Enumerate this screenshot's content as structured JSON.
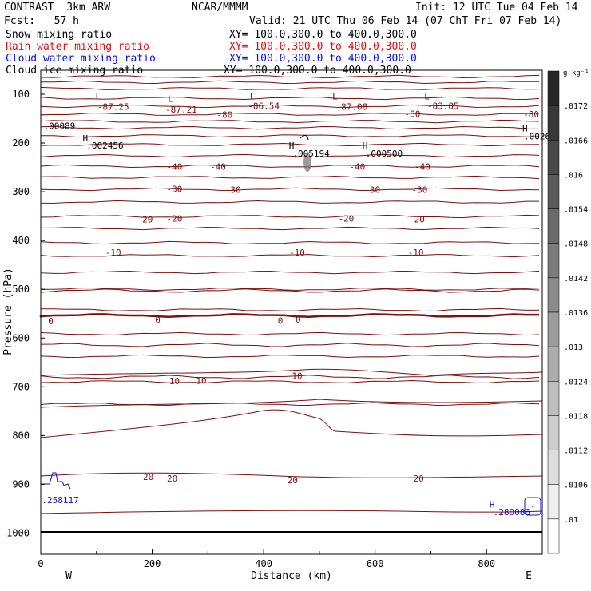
{
  "header": {
    "model": "CONTRAST  3km ARW",
    "org": "NCAR/MMMM",
    "init": "Init: 12 UTC Tue 04 Feb 14",
    "fcst": "Fcst:   57 h",
    "valid": "Valid: 21 UTC Thu 06 Feb 14 (07 ChT Fri 07 Feb 14)",
    "fields": [
      {
        "name": "Snow mixing ratio",
        "xy": "XY= 100.0,300.0 to 400.0,300.0",
        "color": "#000000"
      },
      {
        "name": "Rain water mixing ratio",
        "xy": "XY= 100.0,300.0 to 400.0,300.0",
        "color": "#dd1111"
      },
      {
        "name": "Cloud water mixing ratio",
        "xy": "XY= 100.0,300.0 to 400.0,300.0",
        "color": "#1111cc"
      },
      {
        "name": "Cloud ice mixing ratio",
        "xy": "XY= 100.0,300.0 to 400.0,300.0",
        "color": "#000000"
      }
    ]
  },
  "colorbar": {
    "unit": "g kg⁻¹",
    "labels": [
      ".0172",
      ".0166",
      ".016",
      ".0154",
      ".0148",
      ".0142",
      ".0136",
      ".013",
      ".0124",
      ".0118",
      ".0112",
      ".0106",
      ".01"
    ]
  },
  "chart_data": {
    "type": "contour cross-section",
    "xlabel": "Distance (km)",
    "ylabel": "Pressure (hPa)",
    "xlim": [
      0,
      900
    ],
    "ylim": [
      1000,
      100
    ],
    "x_ticks": [
      "0",
      "200",
      "400",
      "600",
      "800"
    ],
    "y_ticks": [
      "100",
      "200",
      "300",
      "400",
      "500",
      "600",
      "700",
      "800",
      "900",
      "1000"
    ],
    "compass": {
      "left": "W",
      "right": "E"
    },
    "contour_color": "#7a1010",
    "zero_contour": 0,
    "contour_labels": [
      {
        "text": "-87.25",
        "x": 130,
        "p": 125,
        "color": "#7a1010"
      },
      {
        "text": "-87.21",
        "x": 252,
        "p": 131,
        "color": "#7a1010"
      },
      {
        "text": "-86.54",
        "x": 400,
        "p": 124,
        "color": "#7a1010"
      },
      {
        "text": "-87.08",
        "x": 558,
        "p": 125,
        "color": "#7a1010"
      },
      {
        "text": "-83.85",
        "x": 722,
        "p": 124,
        "color": "#7a1010"
      },
      {
        "text": "-80",
        "x": 330,
        "p": 142,
        "color": "#7a1010"
      },
      {
        "text": "-80",
        "x": 667,
        "p": 140,
        "color": "#7a1010"
      },
      {
        "text": "-80",
        "x": 880,
        "p": 141,
        "color": "#7a1010"
      },
      {
        "text": "-40",
        "x": 240,
        "p": 248,
        "color": "#7a1010"
      },
      {
        "text": "-40",
        "x": 318,
        "p": 248,
        "color": "#7a1010"
      },
      {
        "text": "-40",
        "x": 568,
        "p": 248,
        "color": "#7a1010"
      },
      {
        "text": "-40",
        "x": 685,
        "p": 248,
        "color": "#7a1010"
      },
      {
        "text": "-30",
        "x": 240,
        "p": 294,
        "color": "#7a1010"
      },
      {
        "text": "-30",
        "x": 345,
        "p": 296,
        "color": "#7a1010"
      },
      {
        "text": "-30",
        "x": 595,
        "p": 296,
        "color": "#7a1010"
      },
      {
        "text": "-30",
        "x": 680,
        "p": 296,
        "color": "#7a1010"
      },
      {
        "text": "-20",
        "x": 187,
        "p": 356,
        "color": "#7a1010"
      },
      {
        "text": "-20",
        "x": 240,
        "p": 355,
        "color": "#7a1010"
      },
      {
        "text": "-20",
        "x": 548,
        "p": 355,
        "color": "#7a1010"
      },
      {
        "text": "-20",
        "x": 675,
        "p": 356,
        "color": "#7a1010"
      },
      {
        "text": "-10",
        "x": 130,
        "p": 424,
        "color": "#7a1010"
      },
      {
        "text": "-10",
        "x": 460,
        "p": 424,
        "color": "#7a1010"
      },
      {
        "text": "-10",
        "x": 673,
        "p": 424,
        "color": "#7a1010"
      },
      {
        "text": "0",
        "x": 18,
        "p": 565,
        "color": "#7a1010"
      },
      {
        "text": "0",
        "x": 210,
        "p": 563,
        "color": "#7a1010"
      },
      {
        "text": "0",
        "x": 430,
        "p": 564,
        "color": "#7a1010"
      },
      {
        "text": "0",
        "x": 462,
        "p": 562,
        "color": "#7a1010"
      },
      {
        "text": "10",
        "x": 240,
        "p": 688,
        "color": "#7a1010"
      },
      {
        "text": "10",
        "x": 288,
        "p": 687,
        "color": "#7a1010"
      },
      {
        "text": "10",
        "x": 460,
        "p": 677,
        "color": "#7a1010"
      },
      {
        "text": "20",
        "x": 193,
        "p": 885,
        "color": "#7a1010"
      },
      {
        "text": "20",
        "x": 236,
        "p": 888,
        "color": "#7a1010"
      },
      {
        "text": "20",
        "x": 452,
        "p": 891,
        "color": "#7a1010"
      },
      {
        "text": "20",
        "x": 678,
        "p": 888,
        "color": "#7a1010"
      }
    ],
    "markers": [
      {
        "kind": "L",
        "x": 103,
        "p": 104,
        "color": "#7a1010"
      },
      {
        "kind": "L",
        "x": 233,
        "p": 109,
        "color": "#7a1010"
      },
      {
        "kind": "L",
        "x": 380,
        "p": 104,
        "color": "#7a1010"
      },
      {
        "kind": "L",
        "x": 528,
        "p": 104,
        "color": "#7a1010"
      },
      {
        "kind": "L",
        "x": 693,
        "p": 104,
        "color": "#7a1010"
      },
      {
        "kind": "H",
        "x": 80,
        "p": 190,
        "color": "#000000"
      },
      {
        "kind": "H",
        "x": 450,
        "p": 205,
        "color": "#000000"
      },
      {
        "kind": "H",
        "x": 582,
        "p": 205,
        "color": "#000000"
      },
      {
        "kind": "H",
        "x": 869,
        "p": 170,
        "color": "#000000"
      },
      {
        "kind": "H",
        "x": 810,
        "p": 941,
        "color": "#1111cc"
      }
    ],
    "values": [
      {
        "text": ".00089",
        "x": 5,
        "p": 165,
        "color": "#000000"
      },
      {
        "text": ".002456",
        "x": 82,
        "p": 205,
        "color": "#000000"
      },
      {
        "text": ".005194",
        "x": 452,
        "p": 221,
        "color": "#000000"
      },
      {
        "text": ".000500",
        "x": 583,
        "p": 221,
        "color": "#000000"
      },
      {
        "text": ".0026",
        "x": 867,
        "p": 186,
        "color": "#000000"
      },
      {
        "text": ".258117",
        "x": 2,
        "p": 932,
        "color": "#1111cc"
      },
      {
        "text": ".280086",
        "x": 812,
        "p": 957,
        "color": "#1111cc"
      }
    ],
    "grid": false
  }
}
